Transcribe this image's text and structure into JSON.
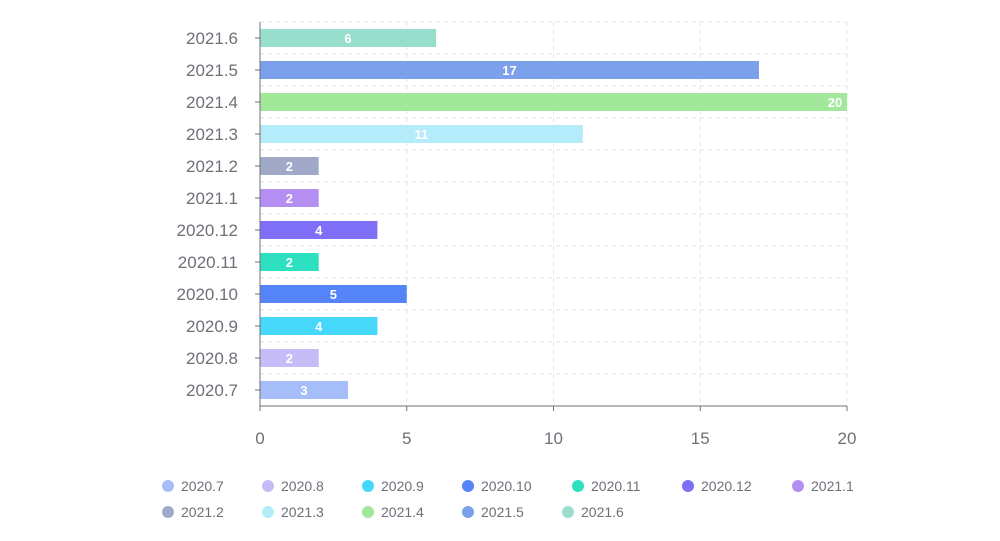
{
  "chart_data": {
    "type": "bar",
    "orientation": "horizontal",
    "categories": [
      "2020.7",
      "2020.8",
      "2020.9",
      "2020.10",
      "2020.11",
      "2020.12",
      "2021.1",
      "2021.2",
      "2021.3",
      "2021.4",
      "2021.5",
      "2021.6"
    ],
    "values": [
      3,
      2,
      4,
      5,
      2,
      4,
      2,
      2,
      11,
      20,
      17,
      6
    ],
    "colors": [
      "#a5bdf8",
      "#c4bdf7",
      "#45d8fb",
      "#5584f8",
      "#2de0c0",
      "#7e6ff6",
      "#b48ef0",
      "#a0a9c8",
      "#b4ecfb",
      "#a2e89b",
      "#7da0ea",
      "#98decc"
    ],
    "xlim": [
      0,
      20
    ],
    "x_ticks": [
      "0",
      "5",
      "10",
      "15",
      "20"
    ],
    "grid": true,
    "data_labels": true,
    "legend_position": "bottom",
    "title": "",
    "xlabel": "",
    "ylabel": ""
  }
}
